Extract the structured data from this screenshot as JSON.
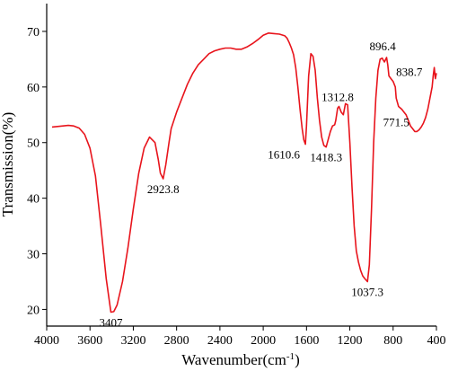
{
  "chart_data": {
    "type": "line",
    "title": "",
    "xlabel": "Wavenumber(cm",
    "xlabel_sup": "-1",
    "xlabel_close": ")",
    "ylabel": "Transmission(%)",
    "xlim": [
      4000,
      400
    ],
    "ylim": [
      17,
      75
    ],
    "x_reversed": true,
    "x_ticks": [
      4000,
      3600,
      3200,
      2800,
      2400,
      2000,
      1600,
      1200,
      800,
      400
    ],
    "y_ticks": [
      20,
      30,
      40,
      50,
      60,
      70
    ],
    "grid": false,
    "line_color": "#e8141c",
    "series": [
      {
        "x": [
          3950,
          3900,
          3850,
          3800,
          3750,
          3700,
          3650,
          3600,
          3550,
          3500,
          3450,
          3407,
          3380,
          3350,
          3300,
          3250,
          3200,
          3150,
          3100,
          3050,
          3000,
          2970,
          2950,
          2923.8,
          2900,
          2870,
          2850,
          2800,
          2750,
          2700,
          2650,
          2600,
          2550,
          2500,
          2450,
          2400,
          2350,
          2300,
          2250,
          2200,
          2150,
          2100,
          2050,
          2000,
          1950,
          1900,
          1850,
          1800,
          1780,
          1760,
          1740,
          1720,
          1700,
          1680,
          1660,
          1640,
          1625,
          1610.6,
          1600,
          1580,
          1560,
          1540,
          1520,
          1500,
          1480,
          1460,
          1440,
          1418.3,
          1400,
          1380,
          1360,
          1340,
          1330,
          1312.8,
          1300,
          1280,
          1260,
          1240,
          1220,
          1200,
          1180,
          1160,
          1140,
          1120,
          1100,
          1080,
          1060,
          1037.3,
          1020,
          1000,
          980,
          960,
          940,
          920,
          900,
          896.4,
          880,
          860,
          850,
          838.7,
          820,
          800,
          780,
          771.5,
          750,
          720,
          700,
          680,
          660,
          640,
          620,
          600,
          580,
          560,
          540,
          520,
          500,
          480,
          460,
          440,
          430,
          420,
          410,
          400
        ],
        "y": [
          52.8,
          52.9,
          53.0,
          53.1,
          53.0,
          52.6,
          51.5,
          49.0,
          44.0,
          35.0,
          25.5,
          19.5,
          19.6,
          20.8,
          25.0,
          31.0,
          38.0,
          44.5,
          49.0,
          51.0,
          50.0,
          47.0,
          44.5,
          43.5,
          46.0,
          50.0,
          52.5,
          55.5,
          58.0,
          60.5,
          62.5,
          64.0,
          65.0,
          66.0,
          66.5,
          66.8,
          67.0,
          67.0,
          66.8,
          66.8,
          67.2,
          67.8,
          68.5,
          69.3,
          69.7,
          69.6,
          69.5,
          69.2,
          68.8,
          68.0,
          67.0,
          65.8,
          63.5,
          60.0,
          56.0,
          52.5,
          50.5,
          49.7,
          53.0,
          62.0,
          66.0,
          65.5,
          63.0,
          58.0,
          54.0,
          51.0,
          49.5,
          49.2,
          50.5,
          52.0,
          53.0,
          53.2,
          54.0,
          56.2,
          56.5,
          55.5,
          55.0,
          57.0,
          56.8,
          50.0,
          42.0,
          35.0,
          30.5,
          28.5,
          27.0,
          26.0,
          25.5,
          25.0,
          28.0,
          38.0,
          50.0,
          58.0,
          63.0,
          65.0,
          65.2,
          65.0,
          64.5,
          65.3,
          64.0,
          62.0,
          61.5,
          61.0,
          60.0,
          58.0,
          56.5,
          56.0,
          55.5,
          55.0,
          54.0,
          53.0,
          52.5,
          52.0,
          52.0,
          52.3,
          52.8,
          53.5,
          54.5,
          56.0,
          58.0,
          60.0,
          62.0,
          63.5,
          61.5,
          62.5
        ]
      }
    ],
    "annotations": [
      {
        "text": "3407",
        "x": 3407,
        "y": 19.5,
        "pos": "below"
      },
      {
        "text": "2923.8",
        "x": 2923.8,
        "y": 43.5,
        "pos": "below"
      },
      {
        "text": "1610.6",
        "x": 1610.6,
        "y": 49.7,
        "pos": "below-left"
      },
      {
        "text": "1418.3",
        "x": 1418.3,
        "y": 49.2,
        "pos": "below"
      },
      {
        "text": "1312.8",
        "x": 1312.8,
        "y": 56.2,
        "pos": "above"
      },
      {
        "text": "1037.3",
        "x": 1037.3,
        "y": 25.0,
        "pos": "below"
      },
      {
        "text": "896.4",
        "x": 896.4,
        "y": 65.3,
        "pos": "above"
      },
      {
        "text": "838.7",
        "x": 838.7,
        "y": 61.0,
        "pos": "right"
      },
      {
        "text": "771.5",
        "x": 771.5,
        "y": 55.5,
        "pos": "below"
      }
    ]
  }
}
